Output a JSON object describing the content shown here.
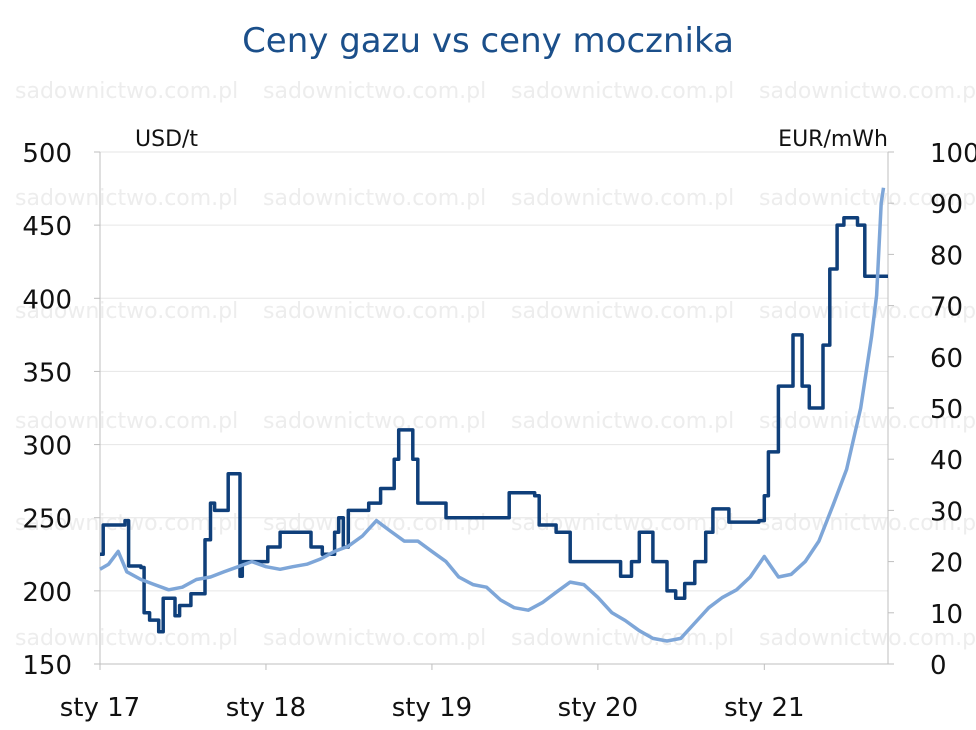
{
  "chart_data": {
    "type": "line",
    "title": "Ceny gazu vs ceny mocznika",
    "left_axis": {
      "unit": "USD/t",
      "ylim": [
        150,
        500
      ],
      "ticks": [
        150,
        200,
        250,
        300,
        350,
        400,
        450,
        500
      ]
    },
    "right_axis": {
      "unit": "EUR/mWh",
      "ylim": [
        0,
        100
      ],
      "ticks": [
        0,
        10,
        20,
        30,
        40,
        50,
        60,
        70,
        80,
        90,
        100
      ]
    },
    "x_range": [
      "2017-01-01",
      "2021-09-30"
    ],
    "x_ticks": [
      {
        "date": "2017-01-01",
        "label": "sty 17"
      },
      {
        "date": "2018-01-01",
        "label": "sty 18"
      },
      {
        "date": "2019-01-01",
        "label": "sty 19"
      },
      {
        "date": "2020-01-01",
        "label": "sty 20"
      },
      {
        "date": "2021-01-01",
        "label": "sty 21"
      }
    ],
    "grid": true,
    "series": [
      {
        "axis": "left",
        "color": "#0f3f7a",
        "step": true,
        "points": [
          [
            "2017-01-01",
            225
          ],
          [
            "2017-01-08",
            245
          ],
          [
            "2017-02-25",
            248
          ],
          [
            "2017-03-05",
            217
          ],
          [
            "2017-04-01",
            216
          ],
          [
            "2017-04-08",
            185
          ],
          [
            "2017-04-20",
            180
          ],
          [
            "2017-05-10",
            172
          ],
          [
            "2017-05-20",
            195
          ],
          [
            "2017-06-15",
            183
          ],
          [
            "2017-06-25",
            190
          ],
          [
            "2017-07-20",
            198
          ],
          [
            "2017-08-20",
            235
          ],
          [
            "2017-09-01",
            260
          ],
          [
            "2017-09-10",
            255
          ],
          [
            "2017-10-10",
            280
          ],
          [
            "2017-11-05",
            210
          ],
          [
            "2017-11-10",
            220
          ],
          [
            "2017-12-10",
            220
          ],
          [
            "2018-01-05",
            230
          ],
          [
            "2018-02-01",
            240
          ],
          [
            "2018-04-10",
            230
          ],
          [
            "2018-05-05",
            225
          ],
          [
            "2018-06-01",
            240
          ],
          [
            "2018-06-10",
            250
          ],
          [
            "2018-06-20",
            230
          ],
          [
            "2018-07-01",
            255
          ],
          [
            "2018-08-15",
            260
          ],
          [
            "2018-09-10",
            270
          ],
          [
            "2018-10-10",
            290
          ],
          [
            "2018-10-20",
            310
          ],
          [
            "2018-11-20",
            290
          ],
          [
            "2018-12-01",
            260
          ],
          [
            "2019-02-01",
            250
          ],
          [
            "2019-06-10",
            250
          ],
          [
            "2019-06-20",
            267
          ],
          [
            "2019-08-15",
            265
          ],
          [
            "2019-08-25",
            245
          ],
          [
            "2019-10-01",
            240
          ],
          [
            "2019-11-01",
            220
          ],
          [
            "2020-01-01",
            220
          ],
          [
            "2020-02-20",
            210
          ],
          [
            "2020-03-15",
            220
          ],
          [
            "2020-04-01",
            240
          ],
          [
            "2020-05-01",
            220
          ],
          [
            "2020-06-01",
            200
          ],
          [
            "2020-06-20",
            195
          ],
          [
            "2020-07-10",
            205
          ],
          [
            "2020-08-01",
            220
          ],
          [
            "2020-08-25",
            240
          ],
          [
            "2020-09-10",
            256
          ],
          [
            "2020-10-15",
            247
          ],
          [
            "2020-12-20",
            248
          ],
          [
            "2021-01-01",
            265
          ],
          [
            "2021-01-10",
            295
          ],
          [
            "2021-02-01",
            340
          ],
          [
            "2021-03-05",
            375
          ],
          [
            "2021-03-25",
            340
          ],
          [
            "2021-04-10",
            325
          ],
          [
            "2021-05-10",
            368
          ],
          [
            "2021-05-25",
            420
          ],
          [
            "2021-06-10",
            450
          ],
          [
            "2021-06-25",
            455
          ],
          [
            "2021-07-25",
            450
          ],
          [
            "2021-08-10",
            415
          ],
          [
            "2021-09-10",
            415
          ]
        ]
      },
      {
        "axis": "right",
        "color": "#7ea6d8",
        "step": false,
        "points": [
          [
            "2017-01-01",
            18.5
          ],
          [
            "2017-01-20",
            19.5
          ],
          [
            "2017-02-10",
            22
          ],
          [
            "2017-03-01",
            18
          ],
          [
            "2017-04-01",
            16.5
          ],
          [
            "2017-05-01",
            15.5
          ],
          [
            "2017-06-01",
            14.5
          ],
          [
            "2017-07-01",
            15
          ],
          [
            "2017-08-01",
            16.5
          ],
          [
            "2017-09-01",
            17
          ],
          [
            "2017-10-01",
            18
          ],
          [
            "2017-11-01",
            19
          ],
          [
            "2017-12-01",
            20
          ],
          [
            "2018-01-01",
            19
          ],
          [
            "2018-02-01",
            18.5
          ],
          [
            "2018-03-01",
            19
          ],
          [
            "2018-04-01",
            19.5
          ],
          [
            "2018-05-01",
            20.5
          ],
          [
            "2018-06-01",
            22
          ],
          [
            "2018-07-01",
            23
          ],
          [
            "2018-08-01",
            25
          ],
          [
            "2018-09-01",
            28
          ],
          [
            "2018-10-01",
            26
          ],
          [
            "2018-11-01",
            24
          ],
          [
            "2018-12-01",
            24
          ],
          [
            "2019-01-01",
            22
          ],
          [
            "2019-02-01",
            20
          ],
          [
            "2019-03-01",
            17
          ],
          [
            "2019-04-01",
            15.5
          ],
          [
            "2019-05-01",
            15
          ],
          [
            "2019-06-01",
            12.5
          ],
          [
            "2019-07-01",
            11
          ],
          [
            "2019-08-01",
            10.5
          ],
          [
            "2019-09-01",
            12
          ],
          [
            "2019-10-01",
            14
          ],
          [
            "2019-11-01",
            16
          ],
          [
            "2019-12-01",
            15.5
          ],
          [
            "2020-01-01",
            13
          ],
          [
            "2020-02-01",
            10
          ],
          [
            "2020-03-01",
            8.5
          ],
          [
            "2020-04-01",
            6.5
          ],
          [
            "2020-05-01",
            5
          ],
          [
            "2020-06-01",
            4.5
          ],
          [
            "2020-07-01",
            5
          ],
          [
            "2020-08-01",
            8
          ],
          [
            "2020-09-01",
            11
          ],
          [
            "2020-10-01",
            13
          ],
          [
            "2020-11-01",
            14.5
          ],
          [
            "2020-12-01",
            17
          ],
          [
            "2021-01-01",
            21
          ],
          [
            "2021-02-01",
            17
          ],
          [
            "2021-03-01",
            17.5
          ],
          [
            "2021-04-01",
            20
          ],
          [
            "2021-05-01",
            24
          ],
          [
            "2021-06-01",
            31
          ],
          [
            "2021-07-01",
            38
          ],
          [
            "2021-08-01",
            50
          ],
          [
            "2021-08-25",
            64
          ],
          [
            "2021-09-05",
            72
          ],
          [
            "2021-09-15",
            90
          ],
          [
            "2021-09-20",
            93
          ]
        ]
      }
    ]
  },
  "watermark": "sadownictwo.com.pl"
}
